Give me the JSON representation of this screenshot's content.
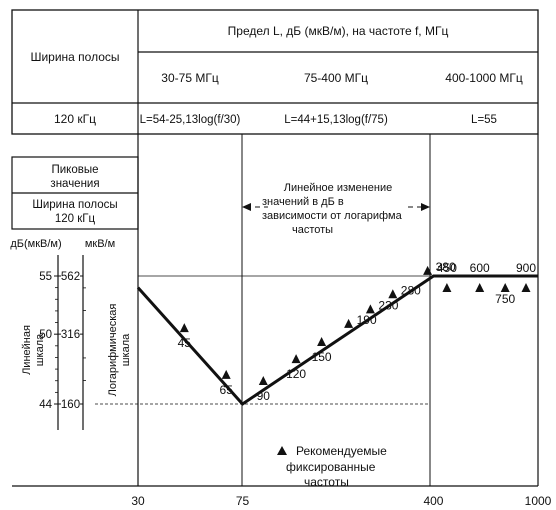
{
  "table": {
    "header_main": "Предел L, дБ (мкВ/м), на частоте f, МГц",
    "bandwidth_label": "Ширина полосы",
    "bandwidth_value": "120 кГц",
    "ranges": [
      "30-75 МГц",
      "75-400 МГц",
      "400-1000 МГц"
    ],
    "formulas": [
      "L=54-25,13log(f/30)",
      "L=44+15,13log(f/75)",
      "L=55"
    ]
  },
  "left_panel": {
    "peak_values": [
      "Пиковые",
      "значения"
    ],
    "bandwidth": [
      "Ширина полосы",
      "120 кГц"
    ],
    "unit_db": "дБ(мкВ/м)",
    "unit_uv": "мкВ/м",
    "linear_scale": [
      "Линейная",
      "шкала"
    ],
    "log_scale": [
      "Логарифмическая",
      "шкала"
    ],
    "db_ticks": [
      "55",
      "50",
      "44"
    ],
    "uv_ticks": [
      "562",
      "316",
      "160"
    ]
  },
  "annotation": [
    "Линейное изменение",
    "значений в дБ в",
    "зависимости от логарифма",
    "частоты"
  ],
  "legend": [
    "Рекомендуемые",
    "фиксированные",
    "частоты"
  ],
  "chart_data": {
    "type": "line",
    "x_scale": "log",
    "xlim": [
      30,
      1000
    ],
    "ylim": [
      44,
      55
    ],
    "x_ticks": [
      "30",
      "75",
      "400",
      "1000"
    ],
    "limit_line": [
      {
        "x": 30,
        "y": 54
      },
      {
        "x": 75,
        "y": 44
      },
      {
        "x": 400,
        "y": 55
      },
      {
        "x": 1000,
        "y": 55
      }
    ],
    "recommended_frequencies": [
      45,
      65,
      90,
      120,
      150,
      190,
      230,
      280,
      380,
      450,
      600,
      750,
      900
    ]
  }
}
